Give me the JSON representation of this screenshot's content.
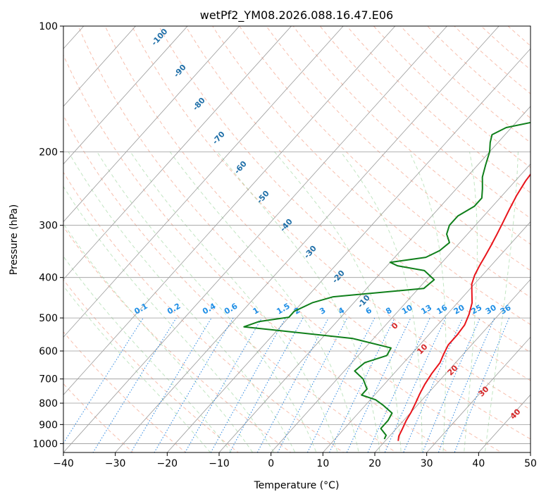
{
  "chart_data": {
    "type": "line",
    "title": "wetPf2_YM08.2026.088.16.47.E06",
    "xlabel": "Temperature (°C)",
    "ylabel": "Pressure (hPa)",
    "xlim": [
      -40,
      50
    ],
    "ylim": [
      1050,
      100
    ],
    "y_scale": "log",
    "skew": "skew-T",
    "grid": true,
    "x_ticks": [
      -40,
      -30,
      -20,
      -10,
      0,
      10,
      20,
      30,
      40,
      50
    ],
    "y_ticks": [
      100,
      200,
      300,
      400,
      500,
      600,
      700,
      800,
      900,
      1000
    ],
    "series": [
      {
        "name": "",
        "color": "#e8141b",
        "points": [
          [
            22.5,
            985
          ],
          [
            21.8,
            960
          ],
          [
            21.2,
            920
          ],
          [
            20.5,
            880
          ],
          [
            20.0,
            840
          ],
          [
            19.3,
            800
          ],
          [
            18.5,
            760
          ],
          [
            17.8,
            720
          ],
          [
            17.3,
            680
          ],
          [
            17.0,
            640
          ],
          [
            16.2,
            610
          ],
          [
            15.5,
            580
          ],
          [
            15.5,
            550
          ],
          [
            15.2,
            520
          ],
          [
            14.2,
            490
          ],
          [
            12.8,
            460
          ],
          [
            11.0,
            435
          ],
          [
            9.5,
            415
          ],
          [
            8.5,
            395
          ],
          [
            7.8,
            375
          ],
          [
            7.2,
            355
          ],
          [
            6.5,
            335
          ],
          [
            5.7,
            315
          ],
          [
            4.8,
            295
          ],
          [
            3.8,
            275
          ],
          [
            2.8,
            255
          ],
          [
            2.0,
            235
          ],
          [
            1.5,
            215
          ],
          [
            1.2,
            200
          ],
          [
            1.5,
            190
          ],
          [
            2.5,
            180
          ],
          [
            3.0,
            170
          ],
          [
            4.0,
            160
          ],
          [
            6.0,
            150
          ],
          [
            8.0,
            140
          ],
          [
            10.0,
            130
          ],
          [
            12.0,
            120
          ],
          [
            14.0,
            110
          ],
          [
            15.5,
            100
          ]
        ]
      },
      {
        "name": "",
        "color": "#0f7f1a",
        "points": [
          [
            19.5,
            975
          ],
          [
            19.2,
            955
          ],
          [
            17.0,
            920
          ],
          [
            17.0,
            880
          ],
          [
            16.5,
            845
          ],
          [
            13.5,
            810
          ],
          [
            11.0,
            785
          ],
          [
            7.5,
            765
          ],
          [
            7.5,
            740
          ],
          [
            5.0,
            700
          ],
          [
            2.0,
            670
          ],
          [
            2.5,
            640
          ],
          [
            5.5,
            615
          ],
          [
            5.0,
            590
          ],
          [
            -4.0,
            560
          ],
          [
            -27.0,
            525
          ],
          [
            -25.0,
            510
          ],
          [
            -20.0,
            498
          ],
          [
            -20.0,
            482
          ],
          [
            -18.0,
            460
          ],
          [
            -15.0,
            445
          ],
          [
            1.0,
            425
          ],
          [
            1.5,
            405
          ],
          [
            -2.0,
            385
          ],
          [
            -8.0,
            375
          ],
          [
            -10.0,
            368
          ],
          [
            -4.0,
            358
          ],
          [
            -2.5,
            345
          ],
          [
            -2.0,
            330
          ],
          [
            -4.0,
            315
          ],
          [
            -5.0,
            300
          ],
          [
            -5.0,
            285
          ],
          [
            -3.5,
            270
          ],
          [
            -3.5,
            258
          ],
          [
            -5.0,
            245
          ],
          [
            -7.0,
            230
          ],
          [
            -8.5,
            215
          ],
          [
            -10.0,
            200
          ],
          [
            -11.5,
            190
          ],
          [
            -12.5,
            182
          ],
          [
            -11.0,
            175
          ],
          [
            -7.0,
            170
          ],
          [
            -5.0,
            160
          ],
          [
            -5.0,
            150
          ],
          [
            -5.5,
            145
          ],
          [
            -5.0,
            138
          ],
          [
            -3.0,
            130
          ],
          [
            -1.0,
            120
          ],
          [
            0.5,
            110
          ],
          [
            1.5,
            100
          ]
        ]
      }
    ],
    "dry_adiabat_labels": [
      "-100",
      "-90",
      "-80",
      "-70",
      "-60",
      "-50",
      "-40",
      "-30",
      "-20",
      "-10"
    ],
    "moist_adiabat_labels": [
      "0",
      "10",
      "20",
      "30",
      "40"
    ],
    "mixing_ratio_labels": [
      "0.1",
      "0.2",
      "0.4",
      "0.6",
      "1",
      "1.5",
      "2",
      "3",
      "4",
      "6",
      "8",
      "10",
      "13",
      "16",
      "20",
      "25",
      "30",
      "36"
    ]
  }
}
